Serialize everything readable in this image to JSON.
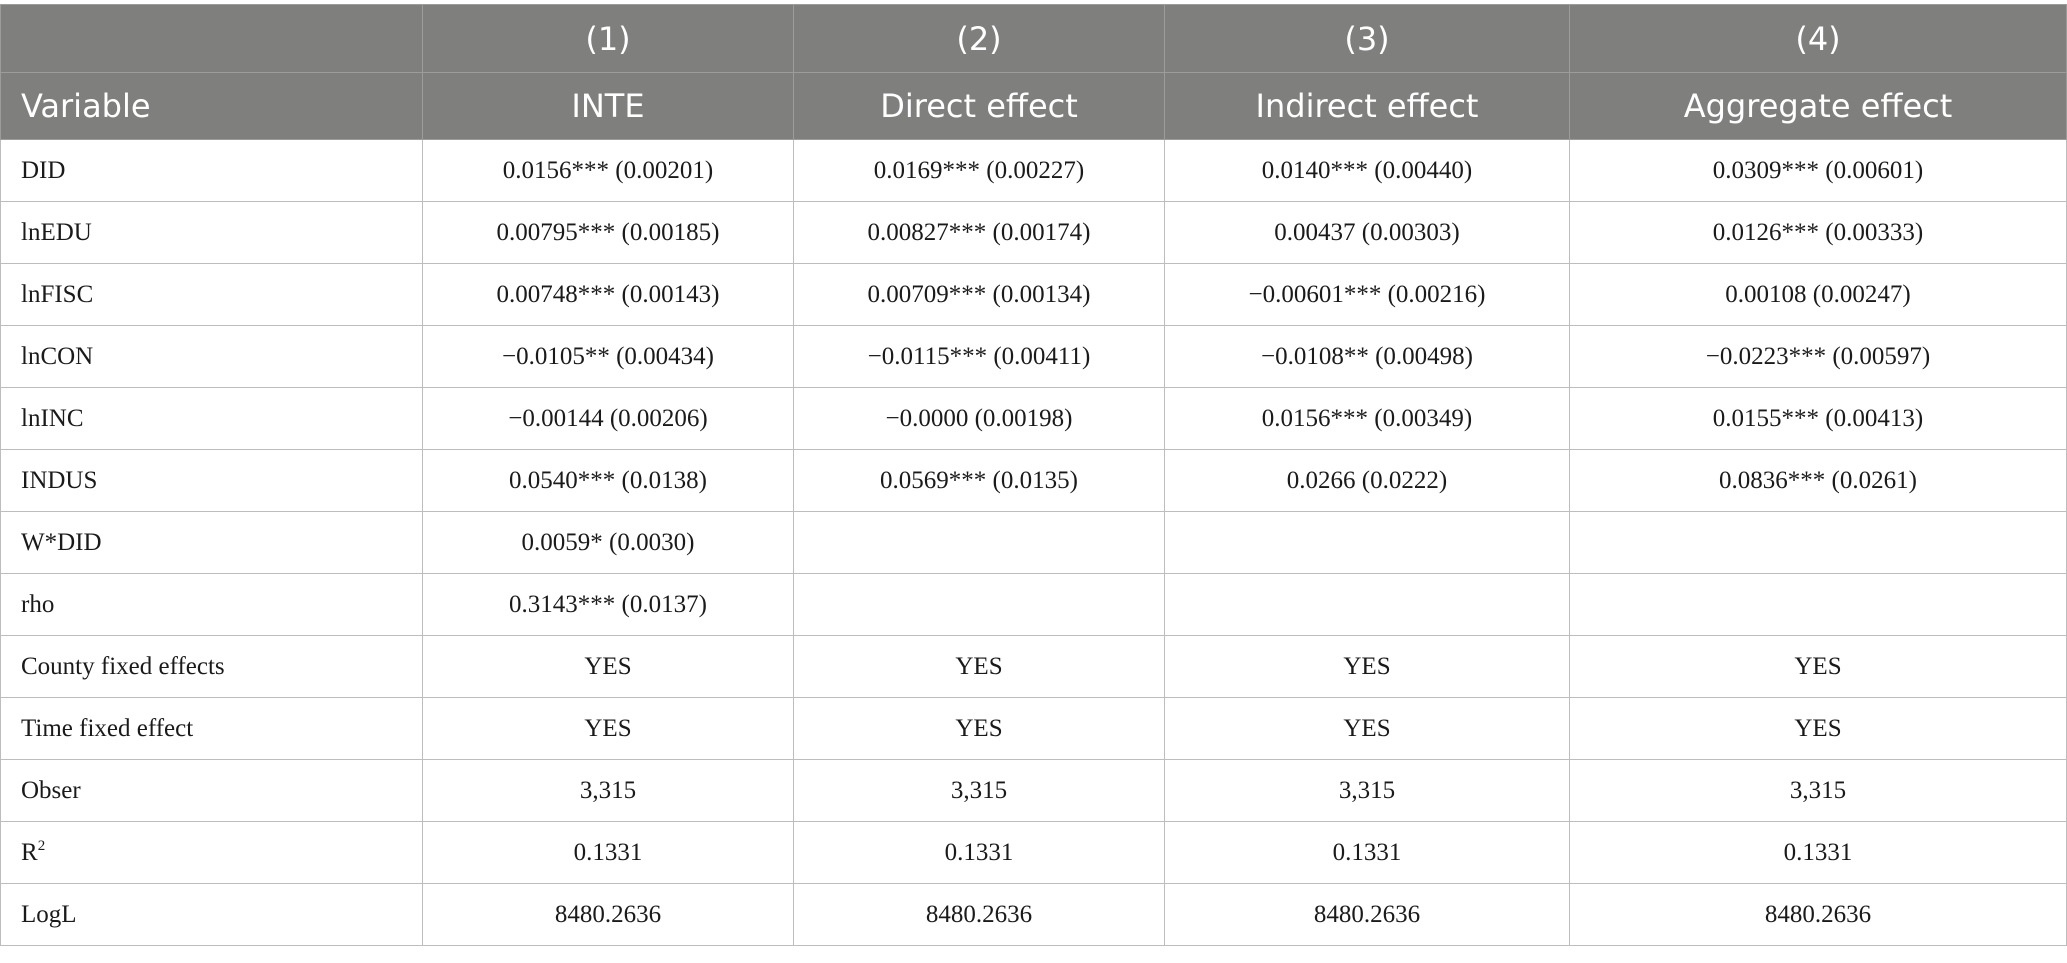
{
  "header": {
    "numbers": [
      "",
      "(1)",
      "(2)",
      "(3)",
      "(4)"
    ],
    "labels": [
      "Variable",
      "INTE",
      "Direct effect",
      "Indirect effect",
      "Aggregate effect"
    ]
  },
  "rows": [
    {
      "variable": "DID",
      "cells": [
        "0.0156*** (0.00201)",
        "0.0169*** (0.00227)",
        "0.0140*** (0.00440)",
        "0.0309*** (0.00601)"
      ]
    },
    {
      "variable": "lnEDU",
      "cells": [
        "0.00795*** (0.00185)",
        "0.00827*** (0.00174)",
        "0.00437 (0.00303)",
        "0.0126*** (0.00333)"
      ]
    },
    {
      "variable": "lnFISC",
      "cells": [
        "0.00748*** (0.00143)",
        "0.00709*** (0.00134)",
        "−0.00601*** (0.00216)",
        "0.00108 (0.00247)"
      ]
    },
    {
      "variable": "lnCON",
      "cells": [
        "−0.0105** (0.00434)",
        "−0.0115*** (0.00411)",
        "−0.0108** (0.00498)",
        "−0.0223*** (0.00597)"
      ]
    },
    {
      "variable": "lnINC",
      "cells": [
        "−0.00144 (0.00206)",
        "−0.0000 (0.00198)",
        "0.0156*** (0.00349)",
        "0.0155*** (0.00413)"
      ]
    },
    {
      "variable": "INDUS",
      "cells": [
        "0.0540*** (0.0138)",
        "0.0569*** (0.0135)",
        "0.0266 (0.0222)",
        "0.0836*** (0.0261)"
      ]
    },
    {
      "variable": "W*DID",
      "cells": [
        "0.0059* (0.0030)",
        "",
        "",
        ""
      ]
    },
    {
      "variable": "rho",
      "cells": [
        "0.3143*** (0.0137)",
        "",
        "",
        ""
      ]
    },
    {
      "variable": "County fixed effects",
      "cells": [
        "YES",
        "YES",
        "YES",
        "YES"
      ]
    },
    {
      "variable": "Time fixed effect",
      "cells": [
        "YES",
        "YES",
        "YES",
        "YES"
      ]
    },
    {
      "variable": "Obser",
      "cells": [
        "3,315",
        "3,315",
        "3,315",
        "3,315"
      ]
    },
    {
      "variable": "R",
      "variable_sup": "2",
      "cells": [
        "0.1331",
        "0.1331",
        "0.1331",
        "0.1331"
      ]
    },
    {
      "variable": "LogL",
      "cells": [
        "8480.2636",
        "8480.2636",
        "8480.2636",
        "8480.2636"
      ]
    }
  ]
}
